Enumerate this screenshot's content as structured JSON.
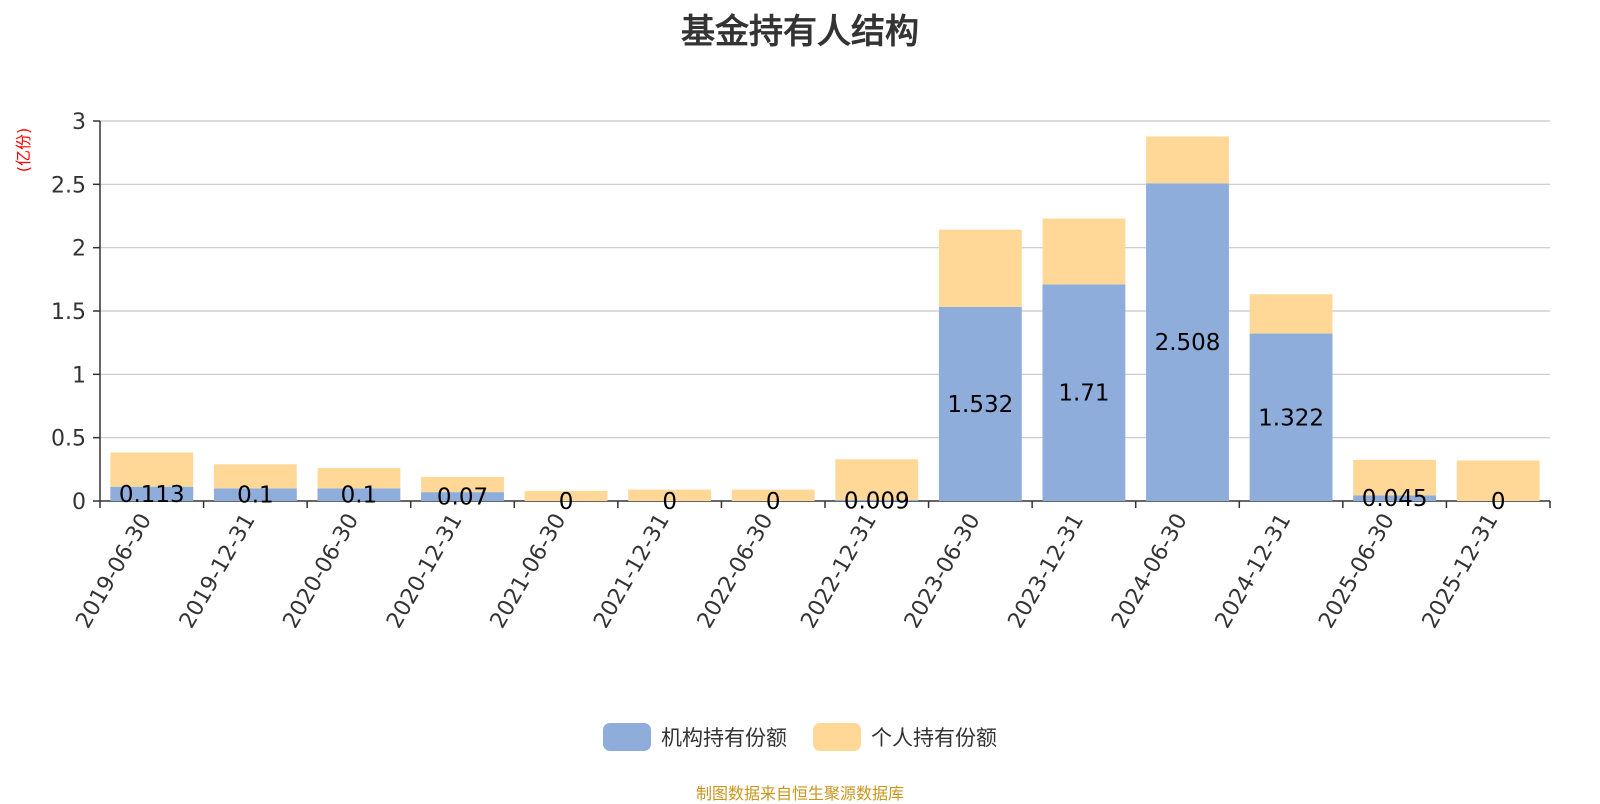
{
  "title": "基金持有人结构",
  "y_unit": "(亿份)",
  "source_note": "制图数据来自恒生聚源数据库",
  "colors": {
    "institutional": "#8eadda",
    "individual": "#ffd898",
    "grid": "#c8c8c8",
    "axis": "#333333",
    "label": "#000000"
  },
  "chart_data": {
    "type": "bar",
    "stacked": true,
    "categories": [
      "2019-06-30",
      "2019-12-31",
      "2020-06-30",
      "2020-12-31",
      "2021-06-30",
      "2021-12-31",
      "2022-06-30",
      "2022-12-31",
      "2023-06-30",
      "2023-12-31",
      "2024-06-30",
      "2024-12-31",
      "2025-06-30",
      "2025-12-31"
    ],
    "series": [
      {
        "name": "机构持有份额",
        "values": [
          0.113,
          0.1,
          0.1,
          0.07,
          0,
          0,
          0,
          0.009,
          1.532,
          1.71,
          2.508,
          1.322,
          0.045,
          0
        ],
        "labels": [
          "0.113",
          "0.1",
          "0.1",
          "0.07",
          "0",
          "0",
          "0",
          "0.009",
          "1.532",
          "1.71",
          "2.508",
          "1.322",
          "0.045",
          "0"
        ]
      },
      {
        "name": "个人持有份额",
        "values": [
          0.27,
          0.19,
          0.16,
          0.12,
          0.08,
          0.09,
          0.09,
          0.32,
          0.61,
          0.52,
          0.37,
          0.31,
          0.28,
          0.32
        ]
      }
    ],
    "ylim": [
      0,
      3
    ],
    "yticks": [
      "0",
      "0.5",
      "1",
      "1.5",
      "2",
      "2.5",
      "3"
    ],
    "ytick_values": [
      0,
      0.5,
      1,
      1.5,
      2,
      2.5,
      3
    ],
    "grid": true,
    "legend_position": "bottom"
  }
}
